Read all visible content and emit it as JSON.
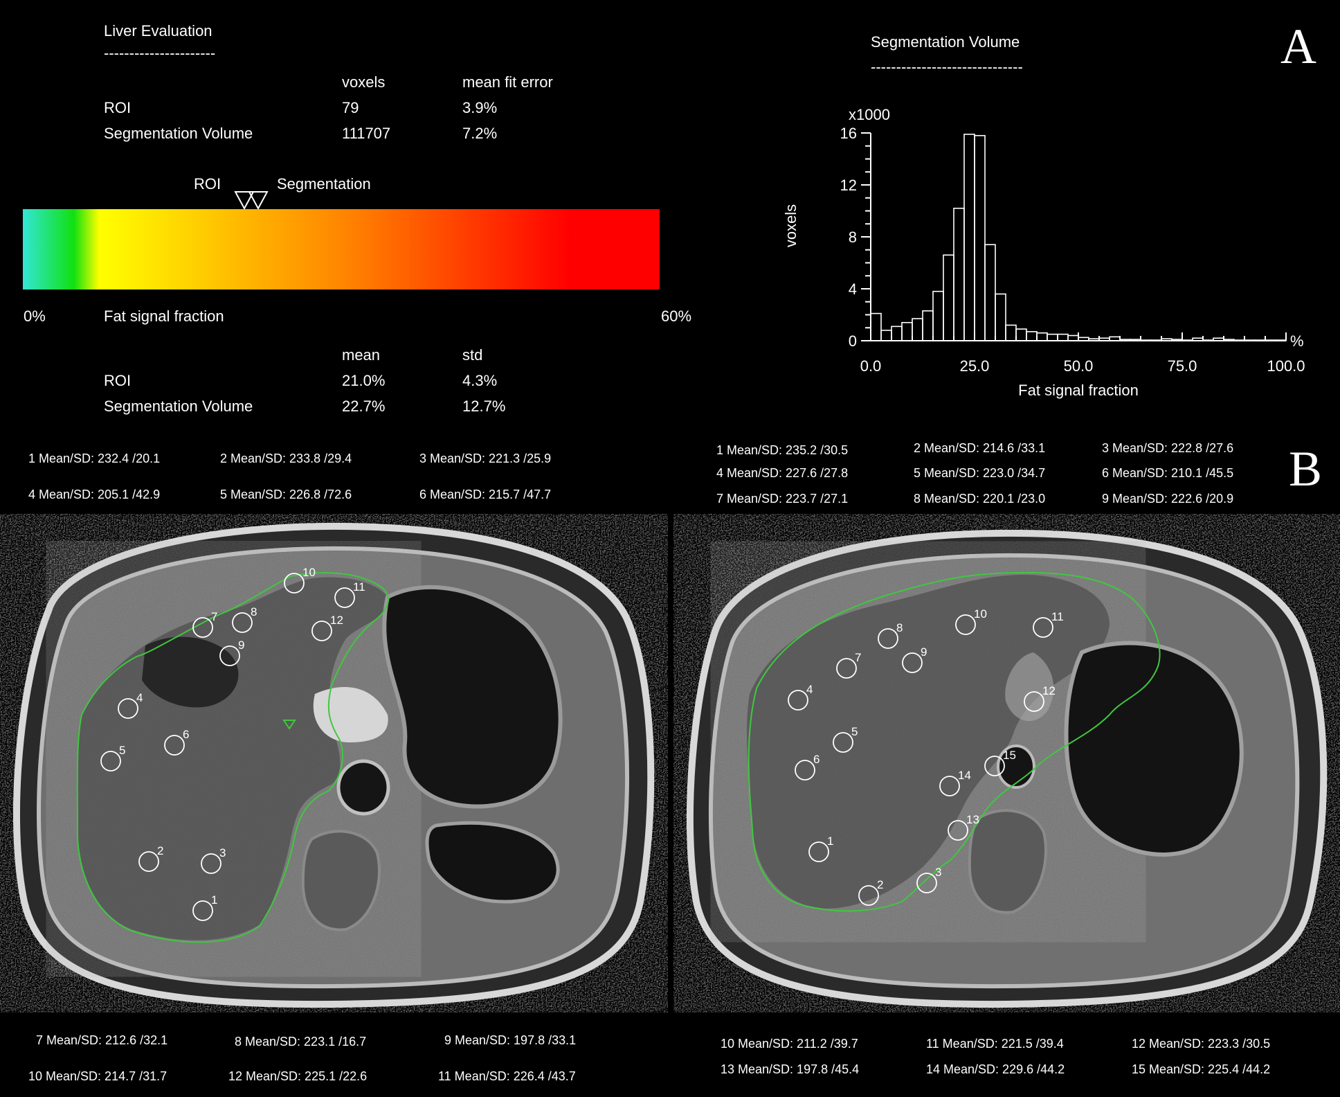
{
  "liver_eval": {
    "title": "Liver Evaluation",
    "underline": "----------------------",
    "col_voxels": "voxels",
    "col_fit": "mean fit error",
    "row_roi": "ROI",
    "row_seg": "Segmentation Volume",
    "roi_voxels": "79",
    "roi_fit": "3.9%",
    "seg_voxels": "111707",
    "seg_fit": "7.2%",
    "marker_roi": "ROI",
    "marker_seg": "Segmentation",
    "scale_min": "0%",
    "scale_max": "60%",
    "scale_label": "Fat signal fraction",
    "col_mean": "mean",
    "col_std": "std",
    "roi_mean": "21.0%",
    "roi_std": "4.3%",
    "seg_mean": "22.7%",
    "seg_std": "12.7%"
  },
  "panel_labels": {
    "a": "A",
    "b": "B"
  },
  "colors": {
    "background": "#000000",
    "text": "#ffffff",
    "scale_start": "#33e6d6",
    "scale_green": "#10e010",
    "scale_yellow": "#ffff00",
    "scale_orange": "#ff8000",
    "scale_end": "#ff0000",
    "contour": "#3fc83f"
  },
  "chart_data": {
    "type": "bar",
    "title": "Segmentation Volume",
    "title_underline": "------------------------------",
    "xlabel": "Fat signal fraction",
    "ylabel": "voxels",
    "y_multiplier": "x1000",
    "x_unit": "%",
    "xlim": [
      0,
      100
    ],
    "ylim": [
      0,
      16
    ],
    "x_ticks": [
      "0.0",
      "25.0",
      "50.0",
      "75.0",
      "100.0"
    ],
    "y_ticks": [
      "0",
      "4",
      "8",
      "12",
      "16"
    ],
    "bin_width": 2.5,
    "bin_starts": [
      0,
      2.5,
      5,
      7.5,
      10,
      12.5,
      15,
      17.5,
      20,
      22.5,
      25,
      27.5,
      30,
      32.5,
      35,
      37.5,
      40,
      42.5,
      45,
      47.5,
      50,
      52.5,
      55,
      57.5,
      60,
      62.5,
      65,
      67.5,
      70,
      72.5,
      75,
      77.5,
      80,
      82.5,
      85,
      87.5,
      90,
      92.5,
      95,
      97.5
    ],
    "values": [
      2.1,
      0.8,
      1.1,
      1.4,
      1.7,
      2.3,
      3.8,
      6.6,
      10.2,
      15.9,
      15.8,
      7.4,
      3.6,
      1.2,
      0.9,
      0.7,
      0.6,
      0.5,
      0.5,
      0.4,
      0.25,
      0.15,
      0.2,
      0.3,
      0.1,
      0.1,
      0.05,
      0.05,
      0.15,
      0.1,
      0.05,
      0.2,
      0.05,
      0.2,
      0.1,
      0.05,
      0.05,
      0.05,
      0.05,
      0.05
    ],
    "grid": false,
    "legend": "none"
  },
  "panel_b_left": {
    "top": [
      "1 Mean/SD: 232.4 /20.1",
      "2 Mean/SD: 233.8 /29.4",
      "3 Mean/SD: 221.3 /25.9",
      "4 Mean/SD: 205.1 /42.9",
      "5 Mean/SD: 226.8 /72.6",
      "6 Mean/SD: 215.7 /47.7"
    ],
    "bottom": [
      "7 Mean/SD: 212.6 /32.1",
      "8 Mean/SD: 223.1 /16.7",
      "9 Mean/SD: 197.8 /33.1",
      "10 Mean/SD: 214.7 /31.7",
      "12 Mean/SD: 225.1 /22.6",
      "11 Mean/SD: 226.4 /43.7"
    ],
    "roi_labels": [
      "1",
      "2",
      "3",
      "4",
      "5",
      "6",
      "7",
      "8",
      "9",
      "10",
      "11",
      "12"
    ]
  },
  "panel_b_right": {
    "top": [
      "1 Mean/SD: 235.2 /30.5",
      "2 Mean/SD: 214.6 /33.1",
      "3 Mean/SD: 222.8 /27.6",
      "4 Mean/SD: 227.6 /27.8",
      "5 Mean/SD: 223.0 /34.7",
      "6 Mean/SD: 210.1 /45.5",
      "7 Mean/SD: 223.7 /27.1",
      "8 Mean/SD: 220.1 /23.0",
      "9 Mean/SD: 222.6 /20.9"
    ],
    "bottom": [
      "10 Mean/SD: 211.2 /39.7",
      "11 Mean/SD: 221.5 /39.4",
      "12 Mean/SD: 223.3 /30.5",
      "13 Mean/SD: 197.8 /45.4",
      "14 Mean/SD: 229.6 /44.2",
      "15 Mean/SD: 225.4 /44.2"
    ],
    "roi_labels": [
      "1",
      "2",
      "3",
      "4",
      "5",
      "6",
      "7",
      "8",
      "9",
      "10",
      "11",
      "12",
      "13",
      "14",
      "15"
    ]
  }
}
